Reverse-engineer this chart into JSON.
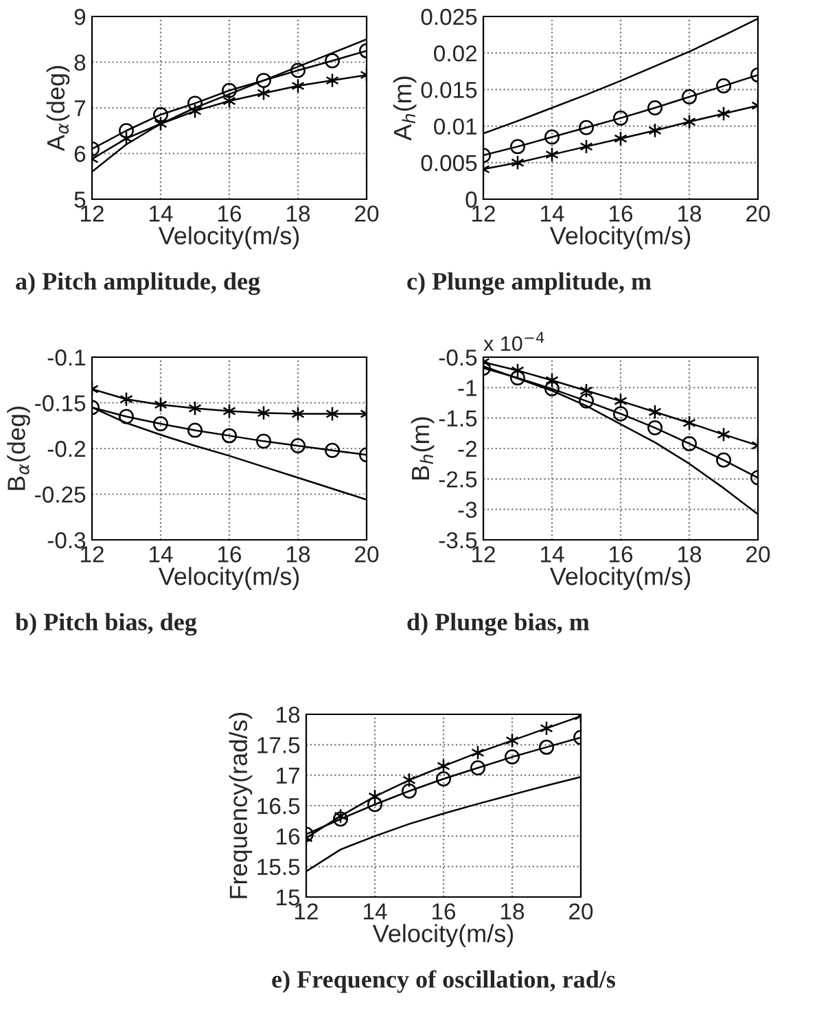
{
  "chart_data": [
    {
      "type": "line",
      "title": "a) Pitch amplitude, deg",
      "xlabel": "Velocity(m/s)",
      "ylabel": "A$_{α}$(deg)",
      "x": [
        12,
        13,
        14,
        15,
        16,
        17,
        18,
        19,
        20
      ],
      "xlim": [
        12,
        20
      ],
      "xticks": [
        12,
        14,
        16,
        18,
        20
      ],
      "ylim": [
        5,
        9
      ],
      "yticks": [
        5,
        6,
        7,
        8,
        9
      ],
      "grid": true,
      "line_style": "solid",
      "series": [
        {
          "color": "#000000",
          "marker": "none",
          "values": [
            5.6,
            6.2,
            6.65,
            7.0,
            7.3,
            7.6,
            7.9,
            8.2,
            8.5
          ]
        },
        {
          "color": "#000000",
          "marker": "circle",
          "values": [
            6.1,
            6.5,
            6.85,
            7.1,
            7.38,
            7.6,
            7.82,
            8.03,
            8.25
          ]
        },
        {
          "color": "#000000",
          "marker": "cross",
          "values": [
            5.88,
            6.33,
            6.65,
            6.93,
            7.15,
            7.32,
            7.48,
            7.6,
            7.72
          ]
        }
      ]
    },
    {
      "type": "line",
      "title": "c) Plunge amplitude, m",
      "xlabel": "Velocity(m/s)",
      "ylabel": "A$_{h}$(m)",
      "x": [
        12,
        13,
        14,
        15,
        16,
        17,
        18,
        19,
        20
      ],
      "xlim": [
        12,
        20
      ],
      "xticks": [
        12,
        14,
        16,
        18,
        20
      ],
      "ylim": [
        0,
        0.025
      ],
      "yticks": [
        0,
        0.005,
        0.01,
        0.015,
        0.02,
        0.025
      ],
      "grid": true,
      "line_style": "solid",
      "series": [
        {
          "color": "#000000",
          "marker": "none",
          "values": [
            0.009,
            0.0107,
            0.0125,
            0.0143,
            0.0162,
            0.0182,
            0.0202,
            0.0224,
            0.0247
          ]
        },
        {
          "color": "#000000",
          "marker": "circle",
          "values": [
            0.006,
            0.0072,
            0.0085,
            0.0098,
            0.0111,
            0.0125,
            0.014,
            0.0155,
            0.017
          ]
        },
        {
          "color": "#000000",
          "marker": "cross",
          "values": [
            0.0041,
            0.005,
            0.0061,
            0.0072,
            0.0083,
            0.0094,
            0.0106,
            0.0117,
            0.0128
          ]
        }
      ]
    },
    {
      "type": "line",
      "title": "b) Pitch bias, deg",
      "xlabel": "Velocity(m/s)",
      "ylabel": "B$_{α}$(deg)",
      "x": [
        12,
        13,
        14,
        15,
        16,
        17,
        18,
        19,
        20
      ],
      "xlim": [
        12,
        20
      ],
      "xticks": [
        12,
        14,
        16,
        18,
        20
      ],
      "ylim": [
        -0.3,
        -0.1
      ],
      "yticks": [
        -0.3,
        -0.25,
        -0.2,
        -0.15,
        -0.1
      ],
      "grid": true,
      "line_style": "solid",
      "series": [
        {
          "color": "#000000",
          "marker": "none",
          "values": [
            -0.155,
            -0.172,
            -0.185,
            -0.197,
            -0.208,
            -0.22,
            -0.232,
            -0.244,
            -0.256
          ]
        },
        {
          "color": "#000000",
          "marker": "circle",
          "values": [
            -0.155,
            -0.165,
            -0.173,
            -0.18,
            -0.186,
            -0.192,
            -0.197,
            -0.202,
            -0.207
          ]
        },
        {
          "color": "#000000",
          "marker": "cross",
          "values": [
            -0.135,
            -0.146,
            -0.152,
            -0.156,
            -0.159,
            -0.161,
            -0.162,
            -0.162,
            -0.162
          ]
        }
      ]
    },
    {
      "type": "line",
      "title": "d) Plunge bias, m",
      "xlabel": "Velocity(m/s)",
      "ylabel": "B$_{h}$(m)",
      "annotations": [
        "x 10$^{−4}$"
      ],
      "x": [
        12,
        13,
        14,
        15,
        16,
        17,
        18,
        19,
        20
      ],
      "xlim": [
        12,
        20
      ],
      "xticks": [
        12,
        14,
        16,
        18,
        20
      ],
      "ylim": [
        -3.5,
        -0.5
      ],
      "yticks": [
        -3.5,
        -3,
        -2.5,
        -2,
        -1.5,
        -1,
        -0.5
      ],
      "grid": true,
      "line_style": "solid",
      "series": [
        {
          "color": "#000000",
          "marker": "none",
          "values": [
            -0.65,
            -0.85,
            -1.05,
            -1.3,
            -1.6,
            -1.9,
            -2.25,
            -2.65,
            -3.08
          ]
        },
        {
          "color": "#000000",
          "marker": "circle",
          "values": [
            -0.68,
            -0.84,
            -1.02,
            -1.22,
            -1.43,
            -1.66,
            -1.92,
            -2.19,
            -2.48
          ]
        },
        {
          "color": "#000000",
          "marker": "cross",
          "values": [
            -0.58,
            -0.72,
            -0.88,
            -1.05,
            -1.22,
            -1.4,
            -1.58,
            -1.77,
            -1.95
          ]
        }
      ]
    },
    {
      "type": "line",
      "title": "e) Frequency of oscillation, rad/s",
      "xlabel": "Velocity(m/s)",
      "ylabel": "Frequency(rad/s)",
      "x": [
        12,
        13,
        14,
        15,
        16,
        17,
        18,
        19,
        20
      ],
      "xlim": [
        12,
        20
      ],
      "xticks": [
        12,
        14,
        16,
        18,
        20
      ],
      "ylim": [
        15,
        18
      ],
      "yticks": [
        15,
        15.5,
        16,
        16.5,
        17,
        17.5,
        18
      ],
      "grid": true,
      "line_style": "solid",
      "series": [
        {
          "color": "#000000",
          "marker": "none",
          "values": [
            15.42,
            15.78,
            16.0,
            16.2,
            16.37,
            16.53,
            16.68,
            16.83,
            16.97
          ]
        },
        {
          "color": "#000000",
          "marker": "circle",
          "values": [
            16.03,
            16.28,
            16.52,
            16.74,
            16.94,
            17.12,
            17.3,
            17.46,
            17.62
          ]
        },
        {
          "color": "#000000",
          "marker": "cross",
          "values": [
            15.97,
            16.33,
            16.65,
            16.92,
            17.15,
            17.37,
            17.57,
            17.77,
            17.97
          ]
        }
      ]
    }
  ]
}
